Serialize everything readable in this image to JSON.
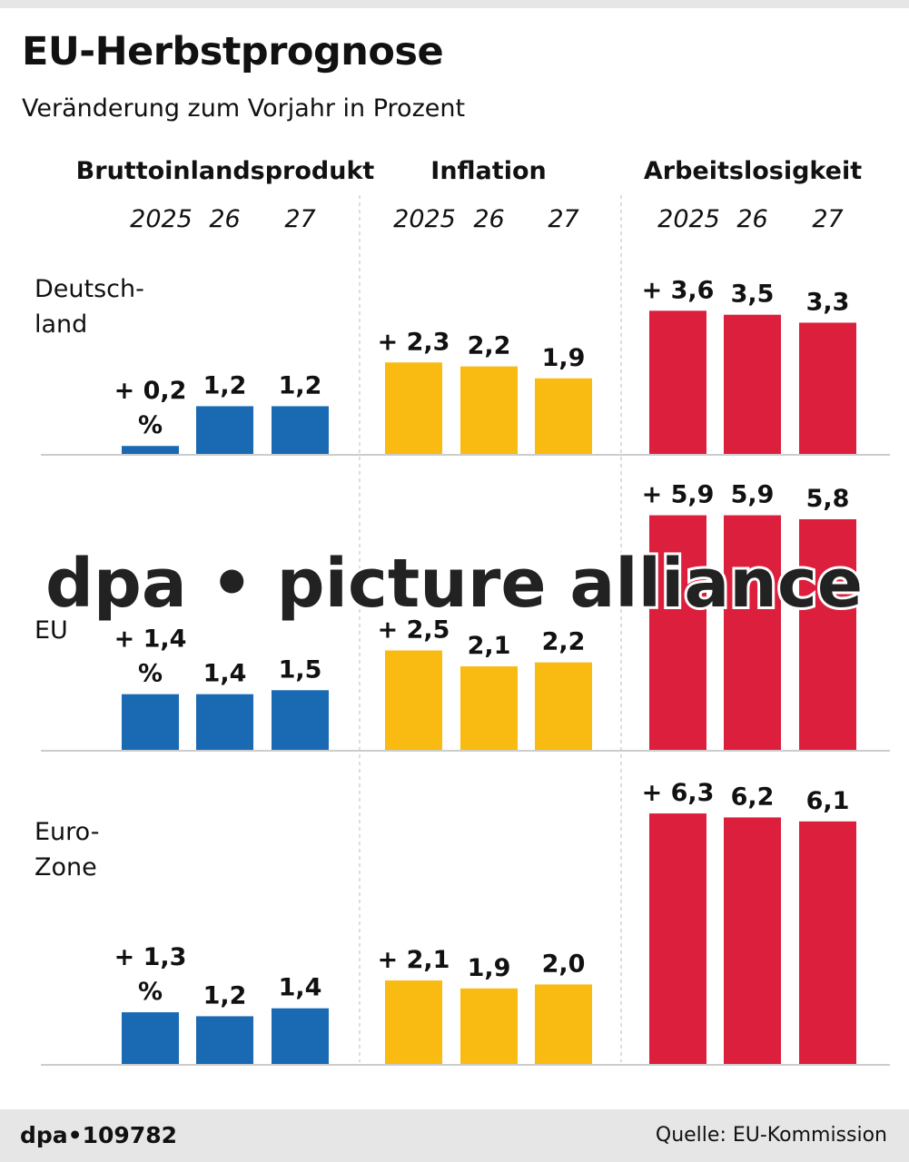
{
  "header": {
    "title": "EU-Herbstprognose",
    "subtitle": "Veränderung zum Vorjahr in Prozent"
  },
  "footer": {
    "agency_id": "dpa•109782",
    "source": "Quelle: EU-Kommission"
  },
  "watermark": "dpa • picture alliance",
  "chart_data": {
    "type": "bar",
    "groups": [
      {
        "name": "Bruttoinlandsprodukt",
        "color": "#1a6ab3",
        "year_labels": [
          "2025",
          "26",
          "27"
        ]
      },
      {
        "name": "Inflation",
        "color": "#f9bb12",
        "year_labels": [
          "2025",
          "26",
          "27"
        ]
      },
      {
        "name": "Arbeitslosigkeit",
        "color": "#dc1f3c",
        "year_labels": [
          "2025",
          "26",
          "27"
        ]
      }
    ],
    "rows": [
      {
        "label": [
          "Deutsch-",
          "land"
        ],
        "values": [
          [
            0.2,
            1.2,
            1.2
          ],
          [
            2.3,
            2.2,
            1.9
          ],
          [
            3.6,
            3.5,
            3.3
          ]
        ],
        "value_labels": [
          [
            [
              "+ 0,2",
              "%"
            ],
            [
              "1,2"
            ],
            [
              "1,2"
            ]
          ],
          [
            [
              "+ 2,3"
            ],
            [
              "2,2"
            ],
            [
              "1,9"
            ]
          ],
          [
            [
              "+ 3,6"
            ],
            [
              "3,5"
            ],
            [
              "3,3"
            ]
          ]
        ]
      },
      {
        "label": [
          "EU"
        ],
        "values": [
          [
            1.4,
            1.4,
            1.5
          ],
          [
            2.5,
            2.1,
            2.2
          ],
          [
            5.9,
            5.9,
            5.8
          ]
        ],
        "value_labels": [
          [
            [
              "+ 1,4",
              "%"
            ],
            [
              "1,4"
            ],
            [
              "1,5"
            ]
          ],
          [
            [
              "+ 2,5"
            ],
            [
              "2,1"
            ],
            [
              "2,2"
            ]
          ],
          [
            [
              "+ 5,9"
            ],
            [
              "5,9"
            ],
            [
              "5,8"
            ]
          ]
        ]
      },
      {
        "label": [
          "Euro-",
          "Zone"
        ],
        "values": [
          [
            1.3,
            1.2,
            1.4
          ],
          [
            2.1,
            1.9,
            2.0
          ],
          [
            6.3,
            6.2,
            6.1
          ]
        ],
        "value_labels": [
          [
            [
              "+ 1,3",
              "%"
            ],
            [
              "1,2"
            ],
            [
              "1,4"
            ]
          ],
          [
            [
              "+ 2,1"
            ],
            [
              "1,9"
            ],
            [
              "2,0"
            ]
          ],
          [
            [
              "+ 6,3"
            ],
            [
              "6,2"
            ],
            [
              "6,1"
            ]
          ]
        ]
      }
    ],
    "unit": "%",
    "grid": false
  }
}
